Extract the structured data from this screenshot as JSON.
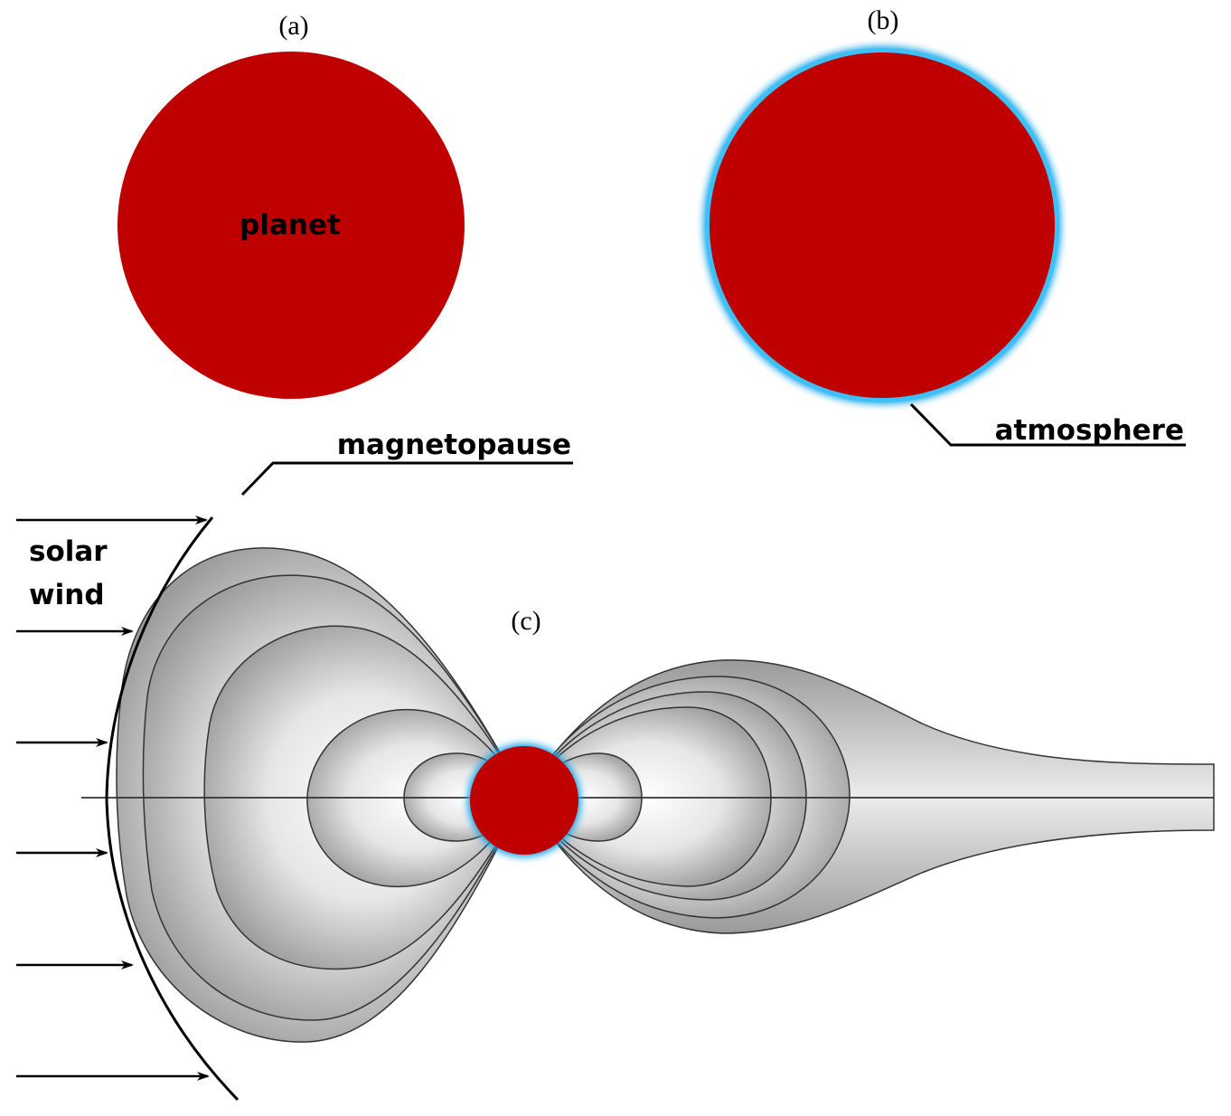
{
  "panels": {
    "a": {
      "label": "(a)",
      "planet_label": "planet"
    },
    "b": {
      "label": "(b)",
      "atmosphere_label": "atmosphere"
    },
    "c": {
      "label": "(c)",
      "magnetopause_label": "magnetopause",
      "solar_wind_line1": "solar",
      "solar_wind_line2": "wind"
    }
  },
  "colors": {
    "planet": "#bf0000",
    "atmosphere": "#1ea7e8",
    "field_outline": "#333333"
  }
}
